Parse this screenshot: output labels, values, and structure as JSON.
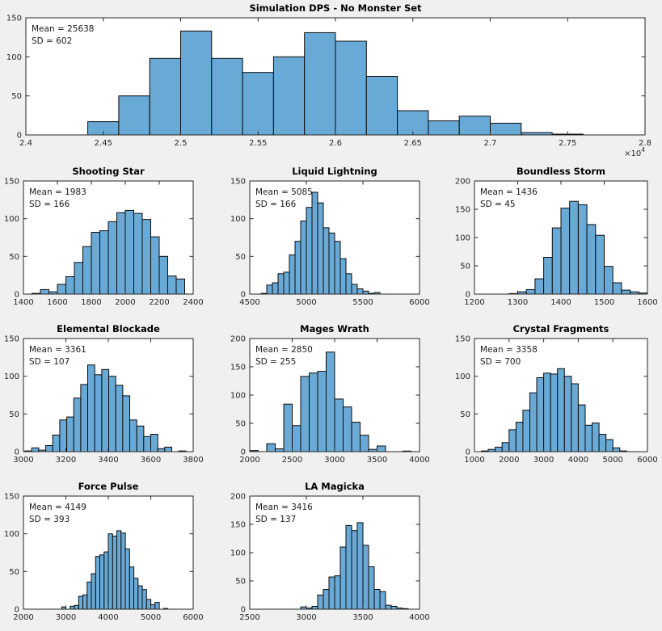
{
  "colors": {
    "background": "#f0f0f0",
    "plot_background": "#ffffff",
    "bar_fill": "#69a9d6",
    "bar_edge": "#0c0c0c",
    "axis": "#262626",
    "text": "#262626"
  },
  "chart_data": [
    {
      "id": "simulation-dps",
      "type": "bar",
      "title": "Simulation DPS - No Monster Set",
      "annotation": {
        "mean": "Mean = 25638",
        "sd": "SD = 602"
      },
      "xlim": [
        24000,
        28000
      ],
      "ylim": [
        0,
        150
      ],
      "xticks": [
        24000,
        24500,
        25000,
        25500,
        26000,
        26500,
        27000,
        27500,
        28000
      ],
      "xtick_labels": [
        "2.4",
        "2.45",
        "2.5",
        "2.55",
        "2.6",
        "2.65",
        "2.7",
        "2.75",
        "2.8"
      ],
      "yticks": [
        0,
        50,
        100,
        150
      ],
      "ytick_labels": [
        "0",
        "50",
        "100",
        "150"
      ],
      "x_offset_label": "×10^4",
      "bin_start": 24400,
      "bin_width": 200,
      "values": [
        17,
        50,
        98,
        133,
        98,
        80,
        100,
        131,
        120,
        75,
        31,
        18,
        24,
        15,
        3,
        1
      ],
      "grid": false,
      "legend": null
    },
    {
      "id": "shooting-star",
      "type": "bar",
      "title": "Shooting Star",
      "annotation": {
        "mean": "Mean = 1983",
        "sd": "SD = 166"
      },
      "xlim": [
        1400,
        2400
      ],
      "ylim": [
        0,
        150
      ],
      "xticks": [
        1400,
        1600,
        1800,
        2000,
        2200,
        2400
      ],
      "xtick_labels": [
        "1400",
        "1600",
        "1800",
        "2000",
        "2200",
        "2400"
      ],
      "yticks": [
        0,
        50,
        100,
        150
      ],
      "ytick_labels": [
        "0",
        "50",
        "100",
        "150"
      ],
      "x_offset_label": null,
      "bin_start": 1450,
      "bin_width": 50,
      "values": [
        1,
        6,
        3,
        13,
        23,
        42,
        63,
        82,
        84,
        96,
        108,
        111,
        107,
        99,
        76,
        50,
        24,
        20
      ],
      "grid": false,
      "legend": null
    },
    {
      "id": "liquid-lightning",
      "type": "bar",
      "title": "Liquid Lightning",
      "annotation": {
        "mean": "Mean = 5085",
        "sd": "SD = 166"
      },
      "xlim": [
        4500,
        6000
      ],
      "ylim": [
        0,
        150
      ],
      "xticks": [
        4500,
        5000,
        5500,
        6000
      ],
      "xtick_labels": [
        "4500",
        "5000",
        "5500",
        "6000"
      ],
      "yticks": [
        0,
        50,
        100,
        150
      ],
      "ytick_labels": [
        "0",
        "50",
        "100",
        "150"
      ],
      "x_offset_label": null,
      "bin_start": 4600,
      "bin_width": 50,
      "values": [
        1,
        12,
        15,
        27,
        29,
        52,
        70,
        97,
        115,
        135,
        121,
        88,
        81,
        70,
        47,
        27,
        13,
        7,
        4,
        1,
        2
      ],
      "grid": false,
      "legend": null
    },
    {
      "id": "boundless-storm",
      "type": "bar",
      "title": "Boundless Storm",
      "annotation": {
        "mean": "Mean = 1436",
        "sd": "SD = 45"
      },
      "xlim": [
        1200,
        1600
      ],
      "ylim": [
        0,
        200
      ],
      "xticks": [
        1200,
        1300,
        1400,
        1500,
        1600
      ],
      "xtick_labels": [
        "1200",
        "1300",
        "1400",
        "1500",
        "1600"
      ],
      "yticks": [
        0,
        50,
        100,
        150,
        200
      ],
      "ytick_labels": [
        "0",
        "50",
        "100",
        "150",
        "200"
      ],
      "x_offset_label": null,
      "bin_start": 1280,
      "bin_width": 20,
      "values": [
        1,
        4,
        8,
        27,
        65,
        117,
        152,
        164,
        158,
        123,
        104,
        49,
        20,
        7,
        4,
        2
      ],
      "grid": false,
      "legend": null
    },
    {
      "id": "elemental-blockade",
      "type": "bar",
      "title": "Elemental Blockade",
      "annotation": {
        "mean": "Mean = 3361",
        "sd": "SD = 107"
      },
      "xlim": [
        3000,
        3800
      ],
      "ylim": [
        0,
        150
      ],
      "xticks": [
        3000,
        3200,
        3400,
        3600,
        3800
      ],
      "xtick_labels": [
        "3000",
        "3200",
        "3400",
        "3600",
        "3800"
      ],
      "yticks": [
        0,
        50,
        100,
        150
      ],
      "ytick_labels": [
        "0",
        "50",
        "100",
        "150"
      ],
      "x_offset_label": null,
      "bin_start": 3006,
      "bin_width": 33,
      "values": [
        1,
        5,
        2,
        8,
        22,
        42,
        46,
        71,
        89,
        115,
        102,
        109,
        100,
        88,
        74,
        42,
        34,
        20,
        23,
        4,
        6,
        0,
        1
      ],
      "grid": false,
      "legend": null
    },
    {
      "id": "mages-wrath",
      "type": "bar",
      "title": "Mages Wrath",
      "annotation": {
        "mean": "Mean = 2850",
        "sd": "SD = 255"
      },
      "xlim": [
        2000,
        4000
      ],
      "ylim": [
        0,
        200
      ],
      "xticks": [
        2000,
        2500,
        3000,
        3500,
        4000
      ],
      "xtick_labels": [
        "2000",
        "2500",
        "3000",
        "3500",
        "4000"
      ],
      "yticks": [
        0,
        50,
        100,
        150,
        200
      ],
      "ytick_labels": [
        "0",
        "50",
        "100",
        "150",
        "200"
      ],
      "x_offset_label": null,
      "bin_start": 2000,
      "bin_width": 100,
      "values": [
        2,
        0,
        14,
        5,
        84,
        46,
        133,
        139,
        142,
        176,
        93,
        79,
        52,
        29,
        4,
        10,
        0,
        0,
        1
      ],
      "grid": false,
      "legend": null
    },
    {
      "id": "crystal-fragments",
      "type": "bar",
      "title": "Crystal Fragments",
      "annotation": {
        "mean": "Mean = 3358",
        "sd": "SD = 700"
      },
      "xlim": [
        1000,
        6000
      ],
      "ylim": [
        0,
        150
      ],
      "xticks": [
        1000,
        2000,
        3000,
        4000,
        5000,
        6000
      ],
      "xtick_labels": [
        "1000",
        "2000",
        "3000",
        "4000",
        "5000",
        "6000"
      ],
      "yticks": [
        0,
        50,
        100,
        150
      ],
      "ytick_labels": [
        "0",
        "50",
        "100",
        "150"
      ],
      "x_offset_label": null,
      "bin_start": 1200,
      "bin_width": 200,
      "values": [
        1,
        3,
        6,
        12,
        29,
        39,
        55,
        78,
        98,
        104,
        103,
        110,
        100,
        90,
        62,
        35,
        38,
        23,
        16,
        5,
        1
      ],
      "grid": false,
      "legend": null
    },
    {
      "id": "force-pulse",
      "type": "bar",
      "title": "Force Pulse",
      "annotation": {
        "mean": "Mean = 4149",
        "sd": "SD = 393"
      },
      "xlim": [
        2000,
        6000
      ],
      "ylim": [
        0,
        150
      ],
      "xticks": [
        2000,
        3000,
        4000,
        5000,
        6000
      ],
      "xtick_labels": [
        "2000",
        "3000",
        "4000",
        "5000",
        "6000"
      ],
      "yticks": [
        0,
        50,
        100,
        150
      ],
      "ytick_labels": [
        "0",
        "50",
        "100",
        "150"
      ],
      "x_offset_label": null,
      "bin_start": 2900,
      "bin_width": 100,
      "values": [
        3,
        0,
        4,
        5,
        17,
        19,
        36,
        47,
        70,
        72,
        76,
        100,
        97,
        104,
        101,
        80,
        56,
        41,
        31,
        26,
        13,
        6,
        9,
        0,
        1
      ],
      "grid": false,
      "legend": null
    },
    {
      "id": "la-magicka",
      "type": "bar",
      "title": "LA Magicka",
      "annotation": {
        "mean": "Mean = 3416",
        "sd": "SD = 137"
      },
      "xlim": [
        2500,
        4000
      ],
      "ylim": [
        0,
        200
      ],
      "xticks": [
        2500,
        3000,
        3500,
        4000
      ],
      "xtick_labels": [
        "2500",
        "3000",
        "3500",
        "4000"
      ],
      "yticks": [
        0,
        50,
        100,
        150,
        200
      ],
      "ytick_labels": [
        "0",
        "50",
        "100",
        "150",
        "200"
      ],
      "x_offset_label": null,
      "bin_start": 2950,
      "bin_width": 50,
      "values": [
        4,
        2,
        5,
        25,
        35,
        57,
        59,
        110,
        148,
        139,
        153,
        113,
        75,
        35,
        31,
        7,
        5,
        2,
        1
      ],
      "grid": false,
      "legend": null
    }
  ]
}
